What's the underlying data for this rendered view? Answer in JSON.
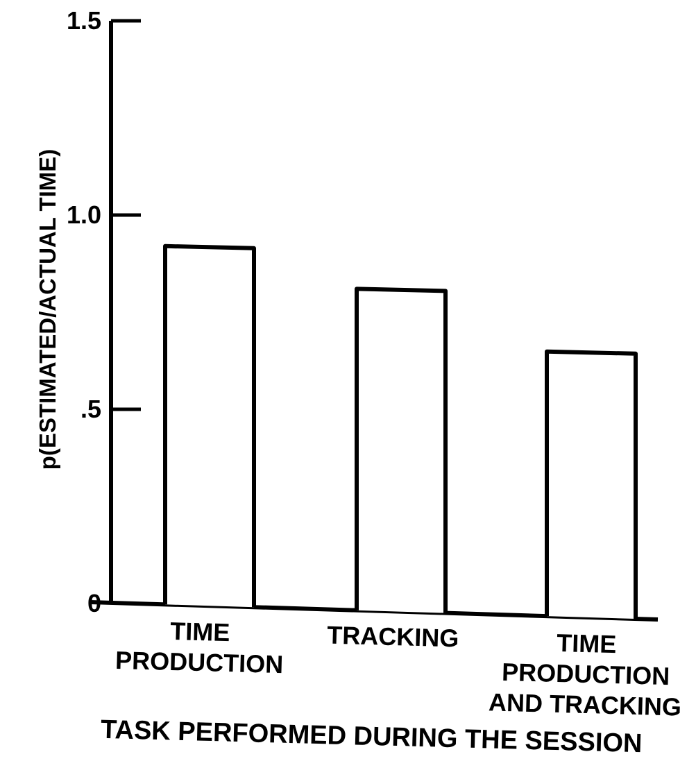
{
  "chart_data": {
    "type": "bar",
    "categories": [
      [
        "TIME",
        "PRODUCTION"
      ],
      [
        "TRACKING"
      ],
      [
        "TIME",
        "PRODUCTION",
        "AND TRACKING"
      ]
    ],
    "values": [
      0.92,
      0.81,
      0.67
    ],
    "ylabel": "p(ESTIMATED/ACTUAL TIME)",
    "xlabel": "TASK PERFORMED DURING THE SESSION",
    "ylim": [
      0,
      1.5
    ],
    "yticks": [
      {
        "value": 0,
        "label": "0"
      },
      {
        "value": 0.5,
        "label": ".5"
      },
      {
        "value": 1.0,
        "label": "1.0"
      },
      {
        "value": 1.5,
        "label": "1.5"
      }
    ],
    "grid": false,
    "bar_fill": "#ffffff",
    "bar_stroke": "#000000"
  }
}
